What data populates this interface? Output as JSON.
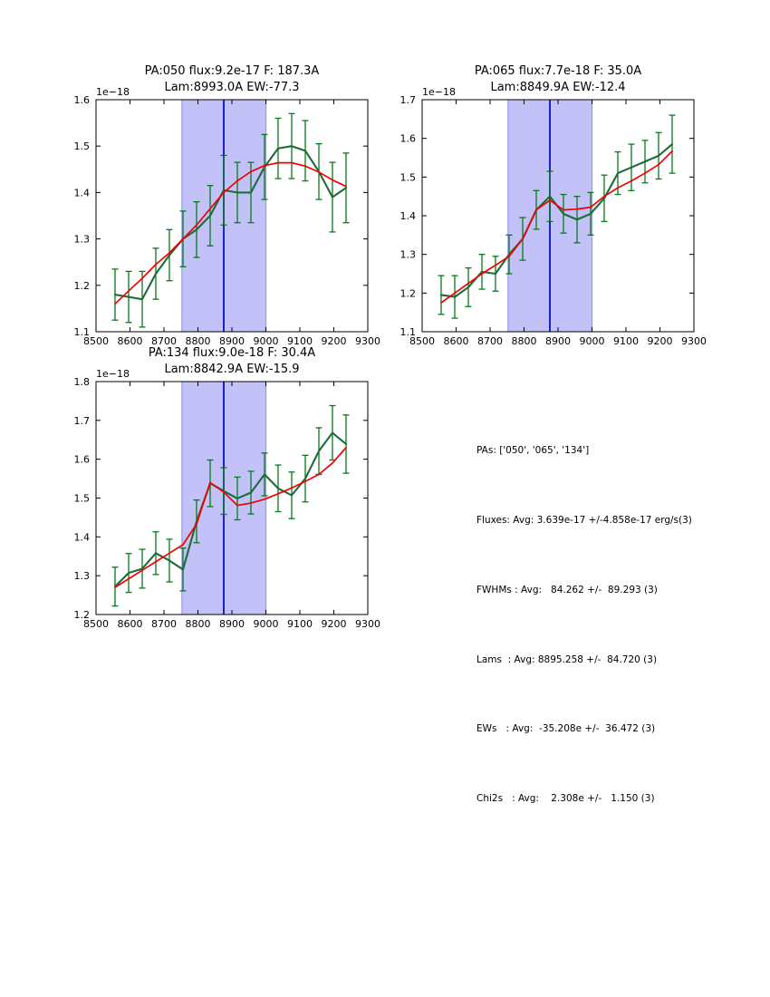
{
  "colors": {
    "data_line": "#1e6b3a",
    "error_bar": "#067a19",
    "fit_line": "#f40000",
    "vline": "#0000cd",
    "band_fill": "#c3c2f8",
    "band_edge": "#9a9af0",
    "axis": "#000000"
  },
  "stats_panel": {
    "lines": [
      "PAs: ['050', '065', '134']",
      "Fluxes: Avg: 3.639e-17 +/-4.858e-17 erg/s(3)",
      "FWHMs : Avg:   84.262 +/-  89.293 (3)",
      "Lams  : Avg: 8895.258 +/-  84.720 (3)",
      "EWs   : Avg:  -35.208e +/-  36.472 (3)",
      "Chi2s   : Avg:    2.308e +/-   1.150 (3)"
    ]
  },
  "chart_data": [
    {
      "type": "line",
      "title": "PA:050 flux:9.2e-17 F: 187.3A",
      "subtitle": "Lam:8993.0A EW:-77.3",
      "y_offset_label": "1e−18",
      "xlabel": "",
      "ylabel": "",
      "grid": false,
      "legend": null,
      "xlim": [
        8500,
        9300
      ],
      "ylim": [
        1.1,
        1.6
      ],
      "xticks": [
        8500,
        8600,
        8700,
        8800,
        8900,
        9000,
        9100,
        9200,
        9300
      ],
      "yticks": [
        1.1,
        1.2,
        1.3,
        1.4,
        1.5,
        1.6
      ],
      "band": {
        "x0": 8753,
        "x1": 9000
      },
      "vline_x": 8876,
      "x": [
        8556,
        8596,
        8636,
        8676,
        8716,
        8756,
        8796,
        8836,
        8876,
        8916,
        8956,
        8996,
        9036,
        9076,
        9116,
        9156,
        9196,
        9236
      ],
      "series": [
        {
          "name": "spectrum",
          "color_key": "data_line",
          "values": [
            1.18,
            1.175,
            1.17,
            1.225,
            1.265,
            1.3,
            1.32,
            1.35,
            1.405,
            1.4,
            1.4,
            1.455,
            1.495,
            1.5,
            1.49,
            1.445,
            1.39,
            1.41
          ],
          "errors": [
            0.055,
            0.055,
            0.06,
            0.055,
            0.055,
            0.06,
            0.06,
            0.065,
            0.075,
            0.065,
            0.065,
            0.07,
            0.065,
            0.07,
            0.065,
            0.06,
            0.075,
            0.075
          ]
        },
        {
          "name": "fit",
          "color_key": "fit_line",
          "values": [
            1.16,
            1.188,
            1.215,
            1.245,
            1.27,
            1.3,
            1.33,
            1.365,
            1.4,
            1.425,
            1.445,
            1.458,
            1.464,
            1.464,
            1.457,
            1.444,
            1.427,
            1.413
          ]
        }
      ]
    },
    {
      "type": "line",
      "title": "PA:065 flux:7.7e-18 F: 35.0A",
      "subtitle": "Lam:8849.9A EW:-12.4",
      "y_offset_label": "1e−18",
      "xlabel": "",
      "ylabel": "",
      "grid": false,
      "legend": null,
      "xlim": [
        8500,
        9300
      ],
      "ylim": [
        1.1,
        1.7
      ],
      "xticks": [
        8500,
        8600,
        8700,
        8800,
        8900,
        9000,
        9100,
        9200,
        9300
      ],
      "yticks": [
        1.1,
        1.2,
        1.3,
        1.4,
        1.5,
        1.6,
        1.7
      ],
      "band": {
        "x0": 8753,
        "x1": 9000
      },
      "vline_x": 8876,
      "x": [
        8556,
        8596,
        8636,
        8676,
        8716,
        8756,
        8796,
        8836,
        8876,
        8916,
        8956,
        8996,
        9036,
        9076,
        9116,
        9156,
        9196,
        9236
      ],
      "series": [
        {
          "name": "spectrum",
          "color_key": "data_line",
          "values": [
            1.195,
            1.19,
            1.215,
            1.255,
            1.25,
            1.3,
            1.34,
            1.415,
            1.45,
            1.405,
            1.39,
            1.405,
            1.445,
            1.51,
            1.525,
            1.54,
            1.555,
            1.585
          ],
          "errors": [
            0.05,
            0.055,
            0.05,
            0.045,
            0.045,
            0.05,
            0.055,
            0.05,
            0.065,
            0.05,
            0.06,
            0.055,
            0.06,
            0.055,
            0.06,
            0.055,
            0.06,
            0.075
          ]
        },
        {
          "name": "fit",
          "color_key": "fit_line",
          "values": [
            1.175,
            1.2,
            1.225,
            1.25,
            1.272,
            1.295,
            1.34,
            1.415,
            1.44,
            1.415,
            1.417,
            1.422,
            1.45,
            1.472,
            1.49,
            1.51,
            1.532,
            1.567
          ]
        }
      ]
    },
    {
      "type": "line",
      "title": "PA:134 flux:9.0e-18 F: 30.4A",
      "subtitle": "Lam:8842.9A EW:-15.9",
      "y_offset_label": "1e−18",
      "xlabel": "",
      "ylabel": "",
      "grid": false,
      "legend": null,
      "xlim": [
        8500,
        9300
      ],
      "ylim": [
        1.2,
        1.8
      ],
      "xticks": [
        8500,
        8600,
        8700,
        8800,
        8900,
        9000,
        9100,
        9200,
        9300
      ],
      "yticks": [
        1.2,
        1.3,
        1.4,
        1.5,
        1.6,
        1.7,
        1.8
      ],
      "band": {
        "x0": 8753,
        "x1": 9000
      },
      "vline_x": 8876,
      "x": [
        8556,
        8596,
        8636,
        8676,
        8716,
        8756,
        8796,
        8836,
        8876,
        8916,
        8956,
        8996,
        9036,
        9076,
        9116,
        9156,
        9196,
        9236
      ],
      "series": [
        {
          "name": "spectrum",
          "color_key": "data_line",
          "values": [
            1.272,
            1.307,
            1.318,
            1.358,
            1.339,
            1.316,
            1.44,
            1.538,
            1.518,
            1.499,
            1.514,
            1.561,
            1.525,
            1.507,
            1.55,
            1.621,
            1.668,
            1.639
          ],
          "errors": [
            0.05,
            0.05,
            0.05,
            0.055,
            0.055,
            0.055,
            0.055,
            0.06,
            0.06,
            0.055,
            0.055,
            0.055,
            0.06,
            0.06,
            0.06,
            0.06,
            0.07,
            0.075
          ]
        },
        {
          "name": "fit",
          "color_key": "fit_line",
          "values": [
            1.27,
            1.292,
            1.314,
            1.336,
            1.358,
            1.38,
            1.433,
            1.54,
            1.515,
            1.481,
            1.487,
            1.497,
            1.511,
            1.526,
            1.543,
            1.561,
            1.59,
            1.63
          ]
        }
      ]
    }
  ]
}
